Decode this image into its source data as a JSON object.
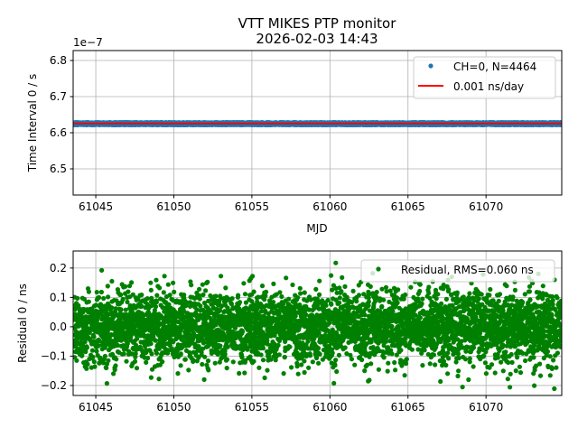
{
  "chart_data": [
    {
      "type": "scatter",
      "title": "VTT MIKES PTP monitor",
      "subtitle": "2026-02-03 14:43",
      "xlabel": "MJD",
      "ylabel": "Time Interval 0 / s",
      "offset_label": "1e−7",
      "xlim": [
        61043.55,
        61074.85
      ],
      "ylim": [
        6.4275,
        6.8275
      ],
      "y_scale_factor": 1e-07,
      "xticks": [
        61045,
        61050,
        61055,
        61060,
        61065,
        61070
      ],
      "xtick_labels": [
        "61045",
        "61050",
        "61055",
        "61060",
        "61065",
        "61070"
      ],
      "yticks": [
        6.5,
        6.6,
        6.7,
        6.8
      ],
      "ytick_labels": [
        "6.5",
        "6.6",
        "6.7",
        "6.8"
      ],
      "grid": true,
      "legend_placement": "top-right",
      "series": [
        {
          "name": "CH=0, N=4464",
          "kind": "points",
          "color": "#1f77b4",
          "n": 4464,
          "x_range": [
            61043.6,
            61074.85
          ],
          "center": 6.625,
          "spread": 0.0035
        },
        {
          "name": "0.001 ns/day",
          "kind": "line",
          "color": "#ff0000",
          "x": [
            61043.55,
            61074.85
          ],
          "y": [
            6.6255,
            6.6255
          ]
        }
      ]
    },
    {
      "type": "scatter",
      "xlabel": "",
      "ylabel": "Residual 0 / ns",
      "xlim": [
        61043.55,
        61074.85
      ],
      "ylim": [
        -0.234,
        0.258
      ],
      "xticks": [
        61045,
        61050,
        61055,
        61060,
        61065,
        61070
      ],
      "xtick_labels": [
        "61045",
        "61050",
        "61055",
        "61060",
        "61065",
        "61070"
      ],
      "yticks": [
        -0.2,
        -0.1,
        0.0,
        0.1,
        0.2
      ],
      "ytick_labels": [
        "−0.2",
        "−0.1",
        "0.0",
        "0.1",
        "0.2"
      ],
      "grid": true,
      "legend_placement": "top-right",
      "series": [
        {
          "name": "Residual, RMS=0.060 ns",
          "kind": "points",
          "color": "#008000",
          "n": 4464,
          "x_range": [
            61043.6,
            61074.85
          ],
          "center": 0.0,
          "rms": 0.06
        }
      ]
    }
  ]
}
